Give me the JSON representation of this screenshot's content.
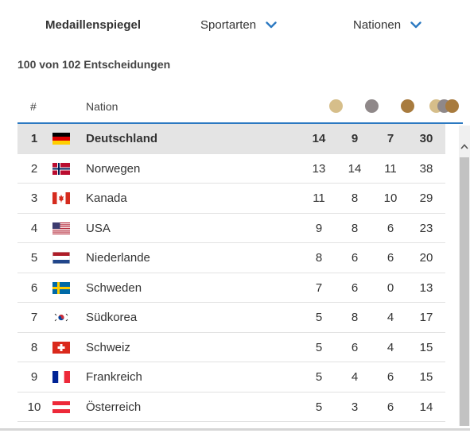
{
  "nav": {
    "medal_table": "Medaillenspiegel",
    "sports": "Sportarten",
    "nations": "Nationen"
  },
  "subtitle": "100 von 102 Entscheidungen",
  "table": {
    "col_rank": "#",
    "col_nation": "Nation",
    "medal_colors": {
      "gold": "#d6be8a",
      "silver": "#8f8889",
      "bronze": "#a87b3e"
    },
    "accent_color": "#2b79c1",
    "rows": [
      {
        "rank": "1",
        "flag": "germany-flag-icon",
        "name": "Deutschland",
        "gold": "14",
        "silver": "9",
        "bronze": "7",
        "total": "30"
      },
      {
        "rank": "2",
        "flag": "norway-flag-icon",
        "name": "Norwegen",
        "gold": "13",
        "silver": "14",
        "bronze": "11",
        "total": "38"
      },
      {
        "rank": "3",
        "flag": "canada-flag-icon",
        "name": "Kanada",
        "gold": "11",
        "silver": "8",
        "bronze": "10",
        "total": "29"
      },
      {
        "rank": "4",
        "flag": "usa-flag-icon",
        "name": "USA",
        "gold": "9",
        "silver": "8",
        "bronze": "6",
        "total": "23"
      },
      {
        "rank": "5",
        "flag": "netherlands-flag-icon",
        "name": "Niederlande",
        "gold": "8",
        "silver": "6",
        "bronze": "6",
        "total": "20"
      },
      {
        "rank": "6",
        "flag": "sweden-flag-icon",
        "name": "Schweden",
        "gold": "7",
        "silver": "6",
        "bronze": "0",
        "total": "13"
      },
      {
        "rank": "7",
        "flag": "south-korea-flag-icon",
        "name": "Südkorea",
        "gold": "5",
        "silver": "8",
        "bronze": "4",
        "total": "17"
      },
      {
        "rank": "8",
        "flag": "switzerland-flag-icon",
        "name": "Schweiz",
        "gold": "5",
        "silver": "6",
        "bronze": "4",
        "total": "15"
      },
      {
        "rank": "9",
        "flag": "france-flag-icon",
        "name": "Frankreich",
        "gold": "5",
        "silver": "4",
        "bronze": "6",
        "total": "15"
      },
      {
        "rank": "10",
        "flag": "austria-flag-icon",
        "name": "Österreich",
        "gold": "5",
        "silver": "3",
        "bronze": "6",
        "total": "14"
      }
    ]
  }
}
